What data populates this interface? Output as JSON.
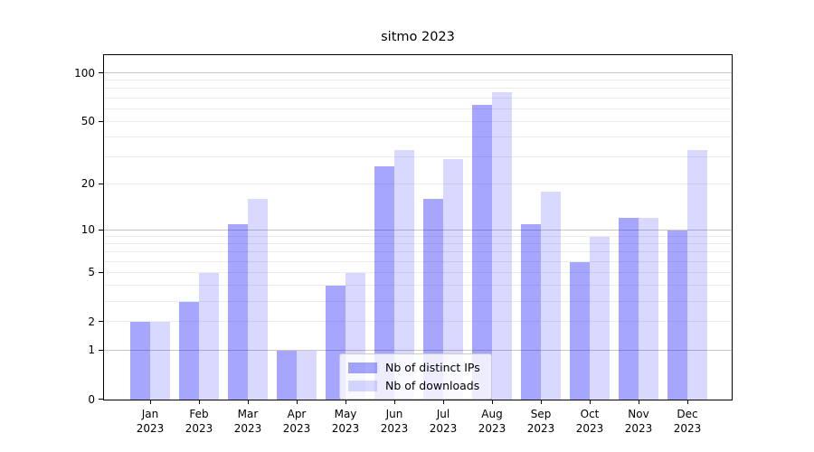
{
  "title": "sitmo 2023",
  "chart_data": {
    "type": "bar",
    "title": "sitmo 2023",
    "categories": [
      "Jan",
      "Feb",
      "Mar",
      "Apr",
      "May",
      "Jun",
      "Jul",
      "Aug",
      "Sep",
      "Oct",
      "Nov",
      "Dec"
    ],
    "year": "2023",
    "series": [
      {
        "name": "Nb of distinct IPs",
        "color": "rgba(0,0,255,0.35)",
        "values": [
          2,
          3,
          11,
          1,
          4,
          26,
          16,
          64,
          11,
          6,
          12,
          10
        ]
      },
      {
        "name": "Nb of downloads",
        "color": "rgba(0,0,255,0.15)",
        "values": [
          2,
          5,
          16,
          1,
          5,
          33,
          29,
          76,
          18,
          9,
          12,
          33
        ]
      }
    ],
    "xlabel": "",
    "ylabel": "",
    "yscale": "log1p",
    "ylim": [
      0,
      128
    ],
    "yticks": [
      0,
      1,
      2,
      5,
      10,
      20,
      50,
      100
    ],
    "major_gridlines": [
      1,
      10,
      100
    ],
    "minor_gridlines": [
      2,
      3,
      4,
      5,
      6,
      7,
      8,
      9,
      20,
      30,
      40,
      50,
      60,
      70,
      80,
      90
    ],
    "grid": true,
    "legend_position": "lower center"
  },
  "colors": {
    "bar_distinct_ips": "rgba(0,0,255,0.35)",
    "bar_downloads": "rgba(0,0,255,0.15)",
    "major_grid": "#c6c6c6",
    "minor_grid": "#ededed",
    "spine": "#000000",
    "legend_border": "#cccccc",
    "legend_background": "rgba(255,255,255,0.8)"
  },
  "legend": {
    "items": [
      {
        "label": "Nb of distinct IPs"
      },
      {
        "label": "Nb of downloads"
      }
    ]
  }
}
